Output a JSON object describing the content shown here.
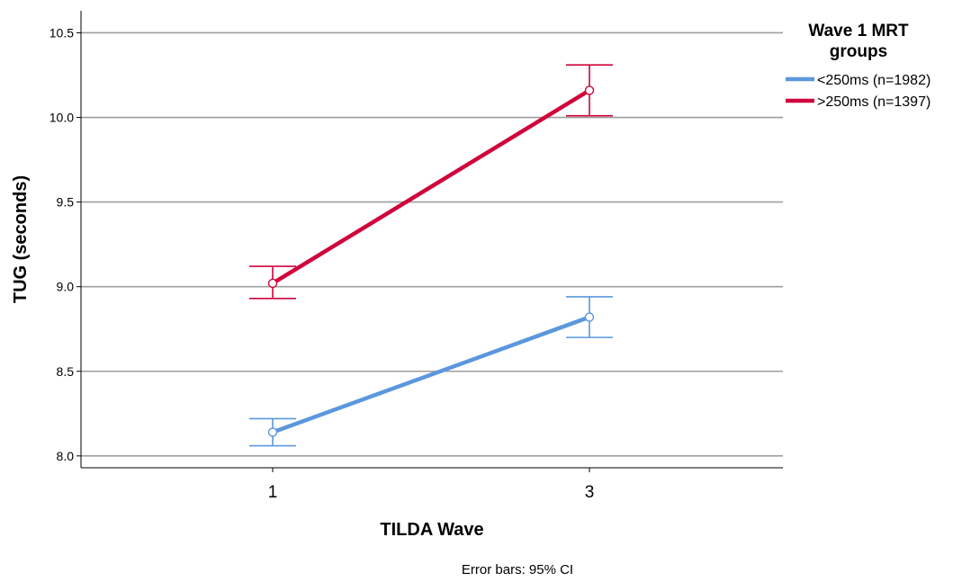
{
  "chart_data": {
    "type": "line",
    "xlabel": "TILDA Wave",
    "ylabel": "TUG (seconds)",
    "x": [
      "1",
      "3"
    ],
    "ylim": [
      7.93,
      10.63
    ],
    "yticks": [
      "8.0",
      "8.5",
      "9.0",
      "9.5",
      "10.0",
      "10.5"
    ],
    "grid": true,
    "legend": {
      "title_lines": [
        "Wave 1 MRT",
        "groups"
      ],
      "placement": "right"
    },
    "series": [
      {
        "name": "<250ms (n=1982)",
        "color": "#5b97dd",
        "values": [
          8.14,
          8.82
        ],
        "ci_low": [
          8.06,
          8.7
        ],
        "ci_high": [
          8.22,
          8.94
        ]
      },
      {
        "name": ">250ms (n=1397)",
        "color": "#d0043b",
        "values": [
          9.02,
          10.16
        ],
        "ci_low": [
          8.93,
          10.01
        ],
        "ci_high": [
          9.12,
          10.31
        ]
      }
    ],
    "footnote": "Error bars: 95% CI"
  }
}
